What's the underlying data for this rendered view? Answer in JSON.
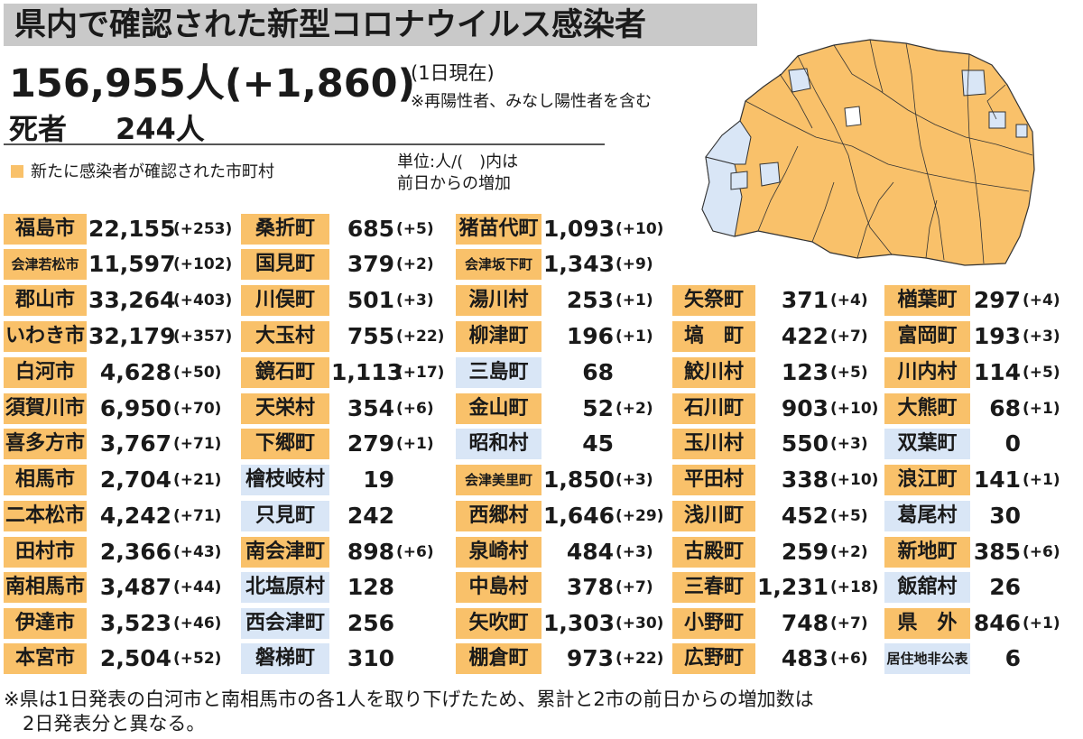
{
  "title": "県内で確認された新型コロナウイルス感染者",
  "total": "156,955人(+1,860)",
  "as_of": "(1日現在)",
  "note_included": "※再陽性者、みなし陽性者を含む",
  "deaths_label": "死者",
  "deaths_value": "244人",
  "legend_label": "新たに感染者が確認された市町村",
  "unit_note": "単位:人/(　)内は\n前日からの増加",
  "colors": {
    "new_case_fill": "#f9c16a",
    "no_new_case_fill": "#d9e6f6",
    "title_bar": "#c9c9c9"
  },
  "columns": [
    {
      "rows": [
        {
          "name": "福島市",
          "value": "22,155",
          "inc": "(+253)",
          "status": "new"
        },
        {
          "name": "会津若松市",
          "value": "11,597",
          "inc": "(+102)",
          "status": "new"
        },
        {
          "name": "郡山市",
          "value": "33,264",
          "inc": "(+403)",
          "status": "new"
        },
        {
          "name": "いわき市",
          "value": "32,179",
          "inc": "(+357)",
          "status": "new"
        },
        {
          "name": "白河市",
          "value": "4,628",
          "inc": "(+50)",
          "status": "new"
        },
        {
          "name": "須賀川市",
          "value": "6,950",
          "inc": "(+70)",
          "status": "new"
        },
        {
          "name": "喜多方市",
          "value": "3,767",
          "inc": "(+71)",
          "status": "new"
        },
        {
          "name": "相馬市",
          "value": "2,704",
          "inc": "(+21)",
          "status": "new"
        },
        {
          "name": "二本松市",
          "value": "4,242",
          "inc": "(+71)",
          "status": "new"
        },
        {
          "name": "田村市",
          "value": "2,366",
          "inc": "(+43)",
          "status": "new"
        },
        {
          "name": "南相馬市",
          "value": "3,487",
          "inc": "(+44)",
          "status": "new"
        },
        {
          "name": "伊達市",
          "value": "3,523",
          "inc": "(+46)",
          "status": "new"
        },
        {
          "name": "本宮市",
          "value": "2,504",
          "inc": "(+52)",
          "status": "new"
        }
      ]
    },
    {
      "rows": [
        {
          "name": "桑折町",
          "value": "685",
          "inc": "(+5)",
          "status": "new"
        },
        {
          "name": "国見町",
          "value": "379",
          "inc": "(+2)",
          "status": "new"
        },
        {
          "name": "川俣町",
          "value": "501",
          "inc": "(+3)",
          "status": "new"
        },
        {
          "name": "大玉村",
          "value": "755",
          "inc": "(+22)",
          "status": "new"
        },
        {
          "name": "鏡石町",
          "value": "1,113",
          "inc": "(+17)",
          "status": "new"
        },
        {
          "name": "天栄村",
          "value": "354",
          "inc": "(+6)",
          "status": "new"
        },
        {
          "name": "下郷町",
          "value": "279",
          "inc": "(+1)",
          "status": "new"
        },
        {
          "name": "檜枝岐村",
          "value": "19",
          "inc": "",
          "status": "none"
        },
        {
          "name": "只見町",
          "value": "242",
          "inc": "",
          "status": "none"
        },
        {
          "name": "南会津町",
          "value": "898",
          "inc": "(+6)",
          "status": "new"
        },
        {
          "name": "北塩原村",
          "value": "128",
          "inc": "",
          "status": "none"
        },
        {
          "name": "西会津町",
          "value": "256",
          "inc": "",
          "status": "none"
        },
        {
          "name": "磐梯町",
          "value": "310",
          "inc": "",
          "status": "none"
        }
      ]
    },
    {
      "rows": [
        {
          "name": "猪苗代町",
          "value": "1,093",
          "inc": "(+10)",
          "status": "new"
        },
        {
          "name": "会津坂下町",
          "value": "1,343",
          "inc": "(+9)",
          "status": "new"
        },
        {
          "name": "湯川村",
          "value": "253",
          "inc": "(+1)",
          "status": "new"
        },
        {
          "name": "柳津町",
          "value": "196",
          "inc": "(+1)",
          "status": "new"
        },
        {
          "name": "三島町",
          "value": "68",
          "inc": "",
          "status": "none"
        },
        {
          "name": "金山町",
          "value": "52",
          "inc": "(+2)",
          "status": "new"
        },
        {
          "name": "昭和村",
          "value": "45",
          "inc": "",
          "status": "none"
        },
        {
          "name": "会津美里町",
          "value": "1,850",
          "inc": "(+3)",
          "status": "new"
        },
        {
          "name": "西郷村",
          "value": "1,646",
          "inc": "(+29)",
          "status": "new"
        },
        {
          "name": "泉崎村",
          "value": "484",
          "inc": "(+3)",
          "status": "new"
        },
        {
          "name": "中島村",
          "value": "378",
          "inc": "(+7)",
          "status": "new"
        },
        {
          "name": "矢吹町",
          "value": "1,303",
          "inc": "(+30)",
          "status": "new"
        },
        {
          "name": "棚倉町",
          "value": "973",
          "inc": "(+22)",
          "status": "new"
        }
      ]
    },
    {
      "rows": [
        {
          "name": "矢祭町",
          "value": "371",
          "inc": "(+4)",
          "status": "new"
        },
        {
          "name": "塙　町",
          "value": "422",
          "inc": "(+7)",
          "status": "new"
        },
        {
          "name": "鮫川村",
          "value": "123",
          "inc": "(+5)",
          "status": "new"
        },
        {
          "name": "石川町",
          "value": "903",
          "inc": "(+10)",
          "status": "new"
        },
        {
          "name": "玉川村",
          "value": "550",
          "inc": "(+3)",
          "status": "new"
        },
        {
          "name": "平田村",
          "value": "338",
          "inc": "(+10)",
          "status": "new"
        },
        {
          "name": "浅川町",
          "value": "452",
          "inc": "(+5)",
          "status": "new"
        },
        {
          "name": "古殿町",
          "value": "259",
          "inc": "(+2)",
          "status": "new"
        },
        {
          "name": "三春町",
          "value": "1,231",
          "inc": "(+18)",
          "status": "new"
        },
        {
          "name": "小野町",
          "value": "748",
          "inc": "(+7)",
          "status": "new"
        },
        {
          "name": "広野町",
          "value": "483",
          "inc": "(+6)",
          "status": "new"
        }
      ]
    },
    {
      "rows": [
        {
          "name": "楢葉町",
          "value": "297",
          "inc": "(+4)",
          "status": "new"
        },
        {
          "name": "富岡町",
          "value": "193",
          "inc": "(+3)",
          "status": "new"
        },
        {
          "name": "川内村",
          "value": "114",
          "inc": "(+5)",
          "status": "new"
        },
        {
          "name": "大熊町",
          "value": "68",
          "inc": "(+1)",
          "status": "new"
        },
        {
          "name": "双葉町",
          "value": "0",
          "inc": "",
          "status": "none"
        },
        {
          "name": "浪江町",
          "value": "141",
          "inc": "(+1)",
          "status": "new"
        },
        {
          "name": "葛尾村",
          "value": "30",
          "inc": "",
          "status": "none"
        },
        {
          "name": "新地町",
          "value": "385",
          "inc": "(+6)",
          "status": "new"
        },
        {
          "name": "飯舘村",
          "value": "26",
          "inc": "",
          "status": "none"
        },
        {
          "name": "県　外",
          "value": "846",
          "inc": "(+1)",
          "status": "new"
        },
        {
          "name": "居住地非公表",
          "value": "6",
          "inc": "",
          "status": "none"
        }
      ]
    }
  ],
  "footnote": "※県は1日発表の白河市と南相馬市の各1人を取り下げたため、累計と2市の前日からの増加数は\n　2日発表分と異なる。"
}
